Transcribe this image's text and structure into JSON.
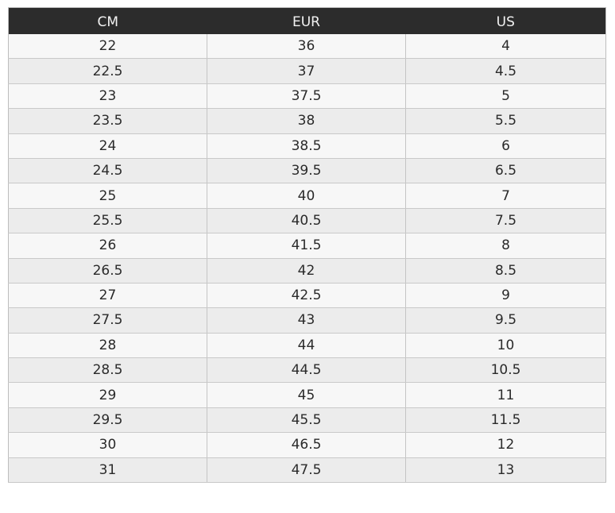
{
  "table": {
    "headers": [
      "CM",
      "EUR",
      "US"
    ],
    "rows": [
      [
        "22",
        "36",
        "4"
      ],
      [
        "22.5",
        "37",
        "4.5"
      ],
      [
        "23",
        "37.5",
        "5"
      ],
      [
        "23.5",
        "38",
        "5.5"
      ],
      [
        "24",
        "38.5",
        "6"
      ],
      [
        "24.5",
        "39.5",
        "6.5"
      ],
      [
        "25",
        "40",
        "7"
      ],
      [
        "25.5",
        "40.5",
        "7.5"
      ],
      [
        "26",
        "41.5",
        "8"
      ],
      [
        "26.5",
        "42",
        "8.5"
      ],
      [
        "27",
        "42.5",
        "9"
      ],
      [
        "27.5",
        "43",
        "9.5"
      ],
      [
        "28",
        "44",
        "10"
      ],
      [
        "28.5",
        "44.5",
        "10.5"
      ],
      [
        "29",
        "45",
        "11"
      ],
      [
        "29.5",
        "45.5",
        "11.5"
      ],
      [
        "30",
        "46.5",
        "12"
      ],
      [
        "31",
        "47.5",
        "13"
      ]
    ]
  },
  "colors": {
    "header_background": "#2c2c2c",
    "header_text": "#f2f2f2",
    "row_light": "#f7f7f7",
    "row_dark": "#ececec"
  }
}
